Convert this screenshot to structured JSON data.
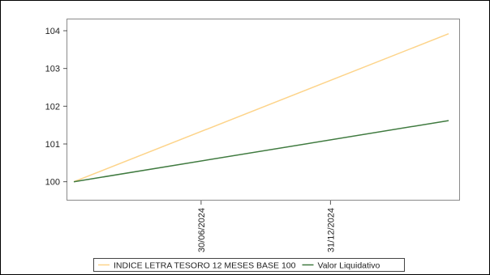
{
  "chart_data": {
    "type": "line",
    "title": "",
    "xlabel": "",
    "ylabel": "",
    "ylim": [
      99.5,
      104.3
    ],
    "yticks": [
      100,
      101,
      102,
      103,
      104
    ],
    "x_tick_labels": [
      "30/06/2024",
      "31/12/2024"
    ],
    "x": [
      "01/01/2024",
      "17/06/2025"
    ],
    "series": [
      {
        "name": "INDICE LETRA TESORO 12 MESES BASE 100",
        "color": "#fdd48a",
        "values": [
          100.0,
          103.92
        ]
      },
      {
        "name": "Valor Liquidativo",
        "color": "#3f7a3f",
        "values": [
          100.0,
          101.62
        ]
      }
    ],
    "grid": false,
    "legend_position": "bottom"
  }
}
